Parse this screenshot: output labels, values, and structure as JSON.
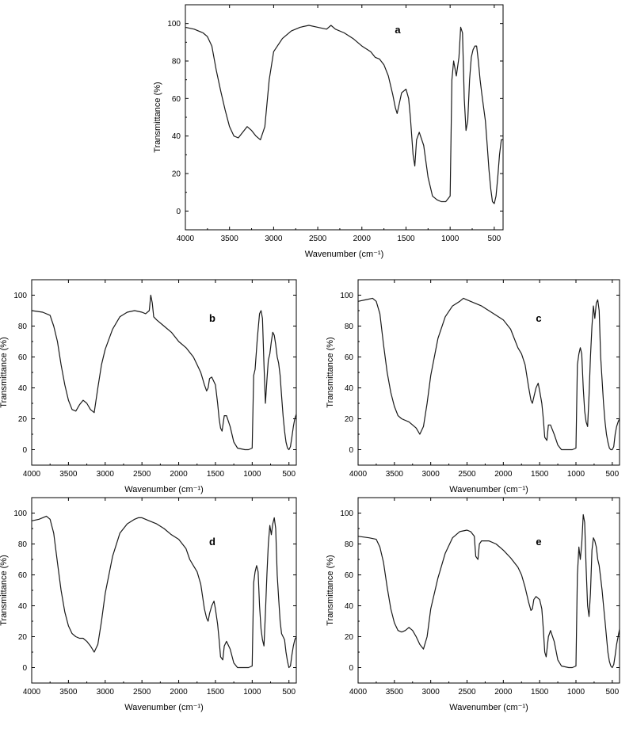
{
  "chart_data": [
    {
      "panel": "a",
      "type": "line",
      "xlabel": "Wavenumber (cm⁻¹)",
      "ylabel": "Transmittance (%)",
      "xlim": [
        4000,
        400
      ],
      "ylim": [
        -10,
        110
      ],
      "x_ticks": [
        4000,
        3500,
        3000,
        2500,
        2000,
        1500,
        1000,
        500
      ],
      "y_ticks": [
        0,
        20,
        40,
        60,
        80,
        100
      ],
      "series": [
        {
          "x": [
            4000,
            3900,
            3800,
            3750,
            3700,
            3650,
            3600,
            3550,
            3500,
            3450,
            3400,
            3350,
            3300,
            3250,
            3200,
            3150,
            3100,
            3050,
            3000,
            2900,
            2800,
            2700,
            2600,
            2500,
            2400,
            2350,
            2300,
            2200,
            2100,
            2000,
            1900,
            1850,
            1800,
            1750,
            1700,
            1650,
            1620,
            1600,
            1550,
            1500,
            1470,
            1450,
            1420,
            1400,
            1380,
            1350,
            1300,
            1250,
            1200,
            1150,
            1100,
            1050,
            1000,
            980,
            960,
            930,
            900,
            880,
            860,
            840,
            820,
            800,
            780,
            760,
            740,
            720,
            700,
            680,
            660,
            640,
            620,
            600,
            580,
            560,
            540,
            520,
            500,
            480,
            460,
            440,
            420,
            400
          ],
          "y": [
            98,
            97,
            95,
            93,
            88,
            75,
            64,
            54,
            45,
            40,
            39,
            42,
            45,
            43,
            40,
            38,
            45,
            70,
            85,
            92,
            96,
            98,
            99,
            98,
            97,
            99,
            97,
            95,
            92,
            88,
            85,
            82,
            81,
            78,
            72,
            62,
            55,
            52,
            63,
            65,
            60,
            50,
            30,
            24,
            38,
            42,
            35,
            18,
            8,
            6,
            5,
            5,
            8,
            70,
            80,
            72,
            82,
            98,
            95,
            60,
            43,
            48,
            70,
            82,
            86,
            88,
            88,
            80,
            70,
            62,
            55,
            48,
            35,
            22,
            12,
            5,
            4,
            8,
            18,
            30,
            38,
            38
          ]
        }
      ]
    },
    {
      "panel": "b",
      "type": "line",
      "xlabel": "Wavenumber (cm⁻¹)",
      "ylabel": "Transmittance (%)",
      "xlim": [
        4000,
        400
      ],
      "ylim": [
        -10,
        110
      ],
      "x_ticks": [
        4000,
        3500,
        3000,
        2500,
        2000,
        1500,
        1000,
        500
      ],
      "y_ticks": [
        0,
        20,
        40,
        60,
        80,
        100
      ],
      "series": [
        {
          "x": [
            4000,
            3850,
            3750,
            3700,
            3650,
            3600,
            3550,
            3500,
            3450,
            3400,
            3350,
            3300,
            3250,
            3200,
            3150,
            3100,
            3050,
            3000,
            2900,
            2800,
            2700,
            2600,
            2500,
            2450,
            2400,
            2380,
            2360,
            2340,
            2300,
            2200,
            2100,
            2000,
            1900,
            1800,
            1750,
            1700,
            1650,
            1620,
            1600,
            1580,
            1550,
            1500,
            1470,
            1450,
            1430,
            1410,
            1380,
            1350,
            1300,
            1250,
            1200,
            1100,
            1050,
            1000,
            980,
            960,
            930,
            900,
            880,
            860,
            840,
            820,
            800,
            780,
            760,
            740,
            720,
            700,
            680,
            660,
            640,
            620,
            600,
            580,
            560,
            540,
            520,
            500,
            480,
            460,
            440,
            420,
            400
          ],
          "y": [
            90,
            89,
            87,
            80,
            70,
            55,
            42,
            32,
            26,
            25,
            29,
            32,
            30,
            26,
            24,
            40,
            55,
            65,
            78,
            86,
            89,
            90,
            89,
            88,
            90,
            100,
            95,
            86,
            84,
            80,
            76,
            70,
            66,
            60,
            55,
            50,
            42,
            38,
            40,
            46,
            47,
            42,
            30,
            20,
            14,
            12,
            22,
            22,
            15,
            5,
            1,
            0,
            0,
            1,
            48,
            52,
            72,
            88,
            90,
            85,
            55,
            30,
            45,
            58,
            62,
            70,
            76,
            74,
            68,
            60,
            56,
            48,
            35,
            22,
            12,
            5,
            1,
            0,
            2,
            8,
            15,
            20,
            23
          ]
        }
      ]
    },
    {
      "panel": "c",
      "type": "line",
      "xlabel": "Wavenumber (cm⁻¹)",
      "ylabel": "Transmittance (%)",
      "xlim": [
        4000,
        400
      ],
      "ylim": [
        -10,
        110
      ],
      "x_ticks": [
        4000,
        3500,
        3000,
        2500,
        2000,
        1500,
        1000,
        500
      ],
      "y_ticks": [
        0,
        20,
        40,
        60,
        80,
        100
      ],
      "series": [
        {
          "x": [
            4000,
            3900,
            3800,
            3750,
            3700,
            3650,
            3600,
            3550,
            3500,
            3450,
            3400,
            3350,
            3300,
            3250,
            3200,
            3150,
            3100,
            3050,
            3000,
            2900,
            2800,
            2700,
            2600,
            2550,
            2500,
            2400,
            2300,
            2200,
            2100,
            2000,
            1900,
            1850,
            1800,
            1750,
            1700,
            1650,
            1620,
            1600,
            1580,
            1550,
            1520,
            1500,
            1470,
            1450,
            1430,
            1400,
            1380,
            1350,
            1300,
            1250,
            1200,
            1100,
            1050,
            1000,
            980,
            960,
            940,
            920,
            900,
            880,
            860,
            840,
            820,
            800,
            780,
            760,
            740,
            720,
            700,
            680,
            660,
            640,
            620,
            600,
            580,
            560,
            540,
            520,
            500,
            480,
            460,
            440,
            420,
            400
          ],
          "y": [
            96,
            97,
            98,
            96,
            88,
            68,
            50,
            37,
            28,
            22,
            20,
            19,
            18,
            16,
            14,
            10,
            15,
            30,
            48,
            72,
            86,
            93,
            96,
            98,
            97,
            95,
            93,
            90,
            87,
            84,
            78,
            72,
            66,
            62,
            55,
            40,
            32,
            30,
            34,
            40,
            43,
            38,
            30,
            20,
            8,
            6,
            16,
            16,
            10,
            3,
            0,
            0,
            0,
            1,
            55,
            62,
            66,
            62,
            40,
            25,
            18,
            15,
            35,
            60,
            80,
            93,
            85,
            95,
            97,
            90,
            60,
            45,
            30,
            18,
            10,
            5,
            1,
            0,
            0,
            2,
            10,
            15,
            18,
            20
          ]
        }
      ]
    },
    {
      "panel": "d",
      "type": "line",
      "xlabel": "Wavenumber (cm⁻¹)",
      "ylabel": "Transmittance (%)",
      "xlim": [
        4000,
        400
      ],
      "ylim": [
        -10,
        110
      ],
      "x_ticks": [
        4000,
        3500,
        3000,
        2500,
        2000,
        1500,
        1000,
        500
      ],
      "y_ticks": [
        0,
        20,
        40,
        60,
        80,
        100
      ],
      "series": [
        {
          "x": [
            4000,
            3900,
            3800,
            3750,
            3700,
            3650,
            3600,
            3550,
            3500,
            3450,
            3400,
            3350,
            3300,
            3250,
            3200,
            3150,
            3100,
            3050,
            3000,
            2900,
            2800,
            2700,
            2600,
            2550,
            2500,
            2400,
            2300,
            2200,
            2100,
            2000,
            1900,
            1850,
            1800,
            1750,
            1700,
            1650,
            1620,
            1600,
            1580,
            1550,
            1520,
            1500,
            1470,
            1450,
            1430,
            1400,
            1380,
            1350,
            1300,
            1250,
            1200,
            1100,
            1050,
            1000,
            980,
            960,
            940,
            920,
            900,
            880,
            860,
            840,
            820,
            800,
            780,
            760,
            740,
            720,
            700,
            680,
            660,
            640,
            620,
            600,
            580,
            560,
            540,
            520,
            500,
            480,
            460,
            440,
            420,
            400
          ],
          "y": [
            95,
            96,
            98,
            96,
            87,
            68,
            50,
            36,
            27,
            22,
            20,
            19,
            19,
            17,
            14,
            10,
            15,
            30,
            48,
            72,
            87,
            93,
            96,
            97,
            97,
            95,
            93,
            90,
            86,
            83,
            77,
            70,
            66,
            62,
            54,
            38,
            32,
            30,
            35,
            40,
            43,
            38,
            28,
            18,
            7,
            5,
            14,
            17,
            12,
            3,
            0,
            0,
            0,
            1,
            55,
            62,
            66,
            62,
            40,
            25,
            18,
            14,
            35,
            60,
            80,
            92,
            86,
            93,
            97,
            90,
            60,
            45,
            30,
            22,
            20,
            18,
            10,
            4,
            0,
            1,
            8,
            14,
            18,
            20
          ]
        }
      ]
    },
    {
      "panel": "e",
      "type": "line",
      "xlabel": "Wavenumber (cm⁻¹)",
      "ylabel": "Transmittance (%)",
      "xlim": [
        4000,
        400
      ],
      "ylim": [
        -10,
        110
      ],
      "x_ticks": [
        4000,
        3500,
        3000,
        2500,
        2000,
        1500,
        1000,
        500
      ],
      "y_ticks": [
        0,
        20,
        40,
        60,
        80,
        100
      ],
      "series": [
        {
          "x": [
            4000,
            3850,
            3750,
            3700,
            3650,
            3600,
            3550,
            3500,
            3450,
            3400,
            3350,
            3300,
            3250,
            3200,
            3150,
            3100,
            3050,
            3000,
            2900,
            2800,
            2700,
            2600,
            2500,
            2450,
            2400,
            2380,
            2350,
            2330,
            2300,
            2200,
            2100,
            2000,
            1900,
            1800,
            1750,
            1700,
            1650,
            1620,
            1600,
            1580,
            1550,
            1500,
            1470,
            1450,
            1430,
            1410,
            1380,
            1350,
            1300,
            1250,
            1200,
            1100,
            1050,
            1000,
            980,
            960,
            940,
            920,
            900,
            880,
            860,
            840,
            820,
            800,
            780,
            760,
            740,
            720,
            700,
            680,
            660,
            640,
            620,
            600,
            580,
            560,
            540,
            520,
            500,
            480,
            460,
            440,
            420,
            400
          ],
          "y": [
            85,
            84,
            83,
            78,
            68,
            52,
            38,
            29,
            24,
            23,
            24,
            26,
            24,
            20,
            15,
            12,
            20,
            38,
            58,
            74,
            84,
            88,
            89,
            88,
            85,
            72,
            70,
            80,
            82,
            82,
            80,
            76,
            71,
            65,
            60,
            52,
            42,
            37,
            38,
            44,
            46,
            44,
            38,
            25,
            10,
            7,
            20,
            24,
            17,
            5,
            1,
            0,
            0,
            1,
            60,
            78,
            70,
            80,
            99,
            94,
            65,
            40,
            33,
            48,
            76,
            84,
            82,
            78,
            70,
            66,
            58,
            50,
            40,
            30,
            20,
            10,
            4,
            1,
            0,
            2,
            8,
            15,
            20,
            25
          ]
        }
      ]
    }
  ]
}
